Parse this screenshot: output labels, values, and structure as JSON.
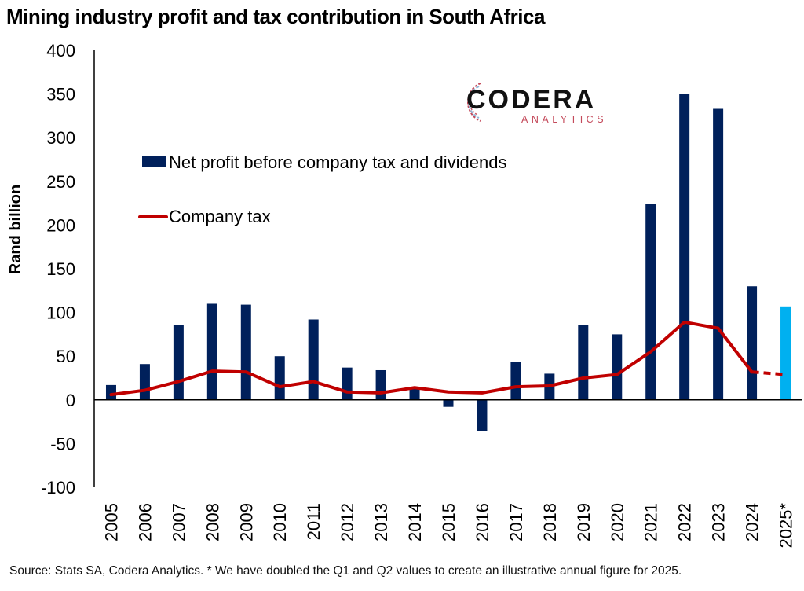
{
  "title": "Mining industry profit and tax contribution in South Africa",
  "source": "Source: Stats SA, Codera Analytics. * We have doubled the Q1 and Q2 values to create an illustrative annual figure for 2025.",
  "logo": {
    "word": "CODERA",
    "sub": "ANALYTICS"
  },
  "colors": {
    "bar": "#00205b",
    "bar_highlight": "#00b0f0",
    "line": "#c00000",
    "axis": "#000000"
  },
  "chart_data": {
    "type": "bar",
    "title": "Mining industry profit and tax contribution in South Africa",
    "xlabel": "",
    "ylabel": "Rand billion",
    "ylim": [
      -100,
      400
    ],
    "yticks": [
      400,
      350,
      300,
      250,
      200,
      150,
      100,
      50,
      0,
      -50,
      -100
    ],
    "grid": false,
    "legend_placement": "top-left",
    "categories": [
      "2005",
      "2006",
      "2007",
      "2008",
      "2009",
      "2010",
      "2011",
      "2012",
      "2013",
      "2014",
      "2015",
      "2016",
      "2017",
      "2018",
      "2019",
      "2020",
      "2021",
      "2022",
      "2023",
      "2024",
      "2025*"
    ],
    "series": [
      {
        "name": "Net profit before company tax and dividends",
        "type": "bar",
        "values": [
          17,
          41,
          86,
          110,
          109,
          50,
          92,
          37,
          34,
          15,
          -8,
          -36,
          43,
          30,
          86,
          75,
          224,
          350,
          333,
          130,
          107
        ],
        "highlight_last": true
      },
      {
        "name": "Company tax",
        "type": "line",
        "values": [
          6,
          11,
          21,
          33,
          32,
          15,
          21,
          9,
          8,
          14,
          9,
          8,
          15,
          16,
          25,
          29,
          55,
          89,
          82,
          32,
          29
        ],
        "dashed_last_segment": true
      }
    ]
  }
}
